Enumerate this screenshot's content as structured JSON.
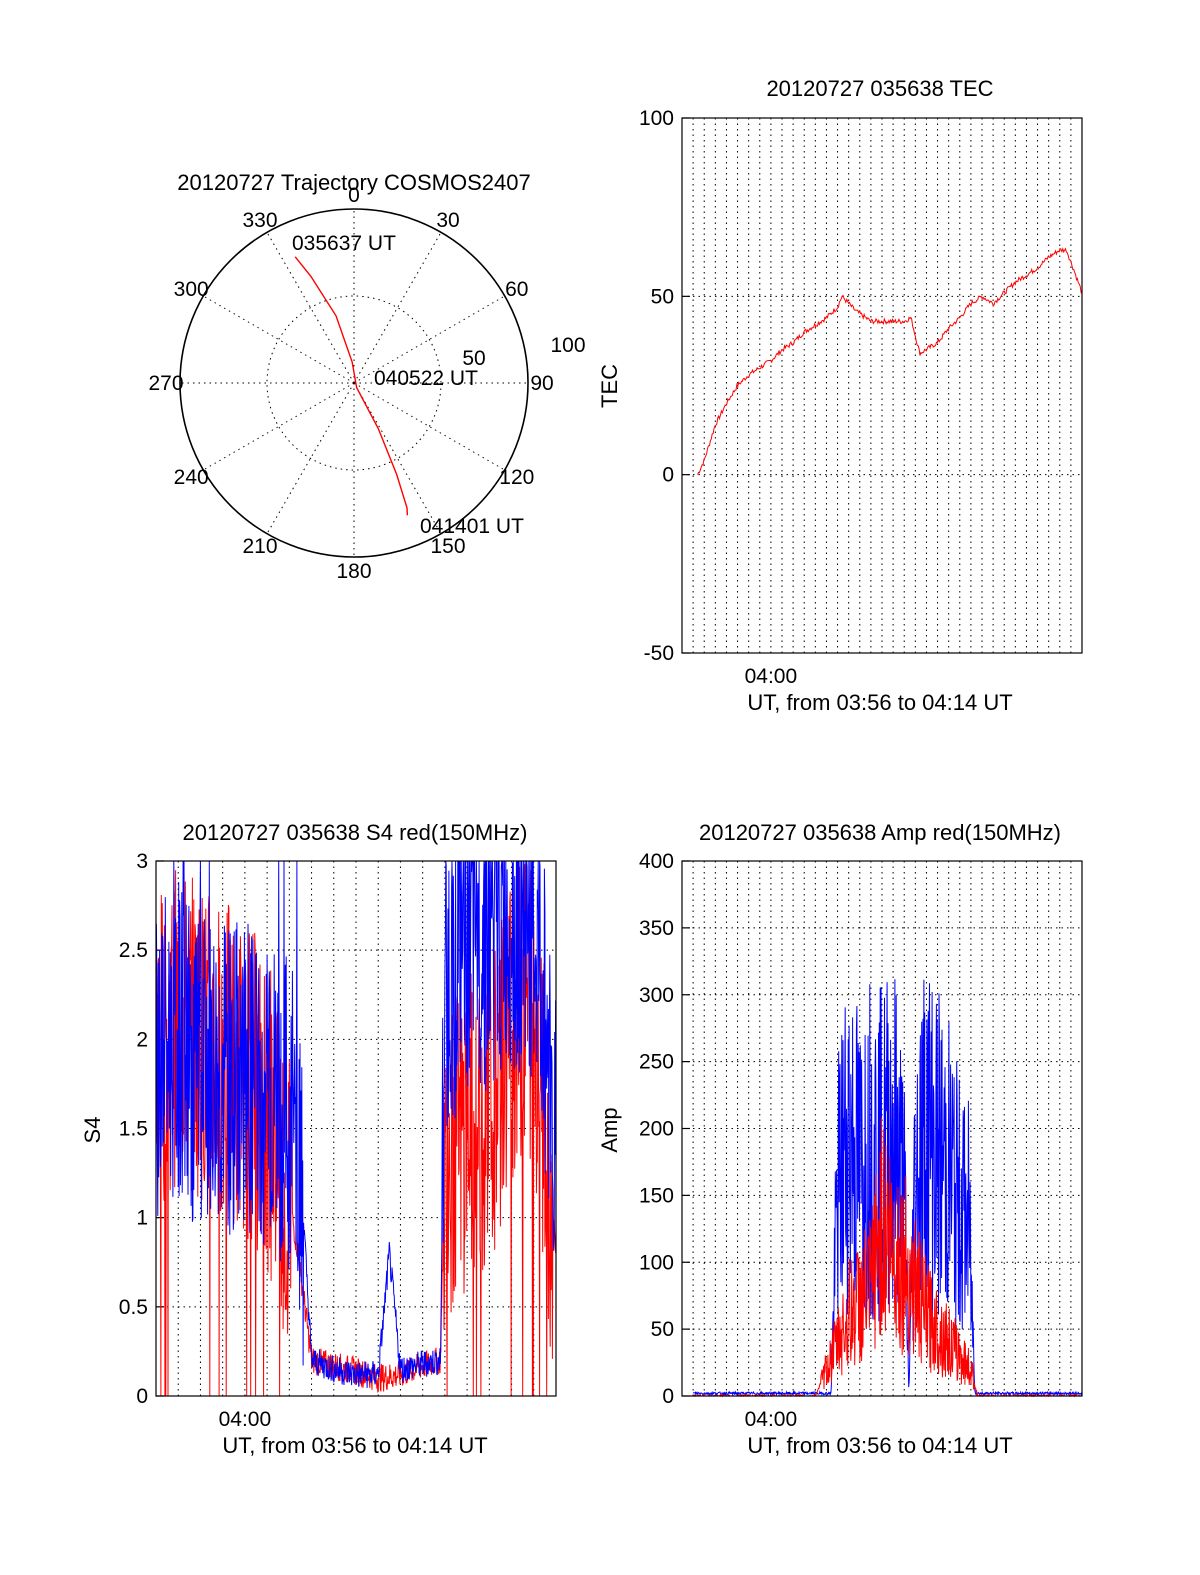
{
  "chart_data": [
    {
      "type": "polar",
      "title": "20120727 Trajectory COSMOS2407",
      "azimuth_labels": [
        "0",
        "30",
        "60",
        "90",
        "120",
        "150",
        "180",
        "210",
        "240",
        "270",
        "300",
        "330"
      ],
      "radial_labels": [
        "50",
        "100"
      ],
      "rlim": [
        0,
        100
      ],
      "grid": true,
      "annotations": [
        "035637 UT",
        "040522 UT",
        "041401 UT"
      ],
      "trajectory": {
        "color": "#ff0000",
        "points": [
          {
            "az": 335,
            "r": 80
          },
          {
            "az": 338,
            "r": 66
          },
          {
            "az": 345,
            "r": 40
          },
          {
            "az": 355,
            "r": 12
          },
          {
            "az": 150,
            "r": 3
          },
          {
            "az": 152,
            "r": 30
          },
          {
            "az": 155,
            "r": 58
          },
          {
            "az": 157,
            "r": 78
          },
          {
            "az": 158,
            "r": 82
          }
        ]
      }
    },
    {
      "type": "line",
      "title": "20120727 035638 TEC",
      "xlabel": "UT, from 03:56 to 04:14 UT",
      "ylabel": "TEC",
      "xlim": [
        0,
        18
      ],
      "ylim": [
        -50,
        100
      ],
      "yticks": [
        "-50",
        "0",
        "50",
        "100"
      ],
      "xtick_label": "04:00",
      "xtick_value": 4,
      "x_grid_step": 0.5,
      "grid": true,
      "series": [
        {
          "color": "#ff0000",
          "x": [
            0.7,
            1.0,
            1.5,
            2.0,
            2.5,
            3.0,
            3.5,
            4.0,
            4.5,
            5.0,
            5.5,
            6.0,
            6.5,
            7.0,
            7.2,
            7.8,
            8.5,
            9.0,
            9.5,
            10.0,
            10.3,
            10.7,
            11.5,
            12.0,
            12.5,
            13.0,
            13.5,
            14.0,
            14.5,
            15.0,
            15.5,
            16.0,
            16.5,
            17.0,
            17.3,
            17.6,
            18.0
          ],
          "values": [
            0,
            4,
            14,
            20,
            25,
            28,
            30,
            32,
            35,
            37,
            40,
            42,
            44,
            47,
            50,
            46,
            43,
            43,
            43,
            43,
            44,
            34,
            37,
            41,
            44,
            48,
            50,
            48,
            51,
            54,
            56,
            58,
            61,
            63,
            63,
            58,
            51
          ]
        }
      ]
    },
    {
      "type": "line",
      "title": "20120727 035638 S4 red(150MHz)",
      "xlabel": "UT, from 03:56 to 04:14 UT",
      "ylabel": "S4",
      "xlim": [
        0,
        18
      ],
      "ylim": [
        0,
        3
      ],
      "yticks": [
        "0",
        "0.5",
        "1",
        "1.5",
        "2",
        "2.5",
        "3"
      ],
      "xtick_label": "04:00",
      "xtick_value": 4,
      "x_grid_step": 1,
      "grid": true,
      "series": [
        {
          "color": "#ff0000",
          "x": [
            0,
            1,
            2,
            3,
            4,
            5,
            6,
            6.4,
            7,
            8,
            9,
            10,
            11,
            12,
            12.8,
            13,
            14,
            15,
            16,
            17,
            18
          ],
          "values": [
            1.9,
            2.1,
            2.0,
            1.9,
            1.8,
            1.6,
            1.1,
            0.8,
            0.2,
            0.17,
            0.14,
            0.1,
            0.12,
            0.17,
            0.2,
            1.3,
            1.5,
            1.6,
            2.1,
            2.2,
            0.8
          ]
        },
        {
          "color": "#0000ff",
          "x": [
            0,
            1,
            2,
            3,
            4,
            5,
            6,
            6.4,
            7,
            8,
            9,
            10,
            10.5,
            11,
            12,
            12.8,
            13,
            14,
            15,
            16,
            17,
            18
          ],
          "values": [
            1.9,
            2.0,
            1.8,
            1.8,
            1.8,
            1.7,
            1.6,
            1.5,
            0.2,
            0.15,
            0.12,
            0.12,
            0.8,
            0.15,
            0.18,
            0.2,
            2.3,
            2.6,
            2.6,
            2.7,
            2.6,
            1.6
          ]
        }
      ]
    },
    {
      "type": "line",
      "title": "20120727 035638 Amp red(150MHz)",
      "xlabel": "UT, from 03:56 to 04:14 UT",
      "ylabel": "Amp",
      "xlim": [
        0,
        18
      ],
      "ylim": [
        0,
        400
      ],
      "yticks": [
        "0",
        "50",
        "100",
        "150",
        "200",
        "250",
        "300",
        "350",
        "400"
      ],
      "xtick_label": "04:00",
      "xtick_value": 4,
      "x_grid_step": 0.5,
      "grid": true,
      "series": [
        {
          "color": "#0000ff",
          "x": [
            0.5,
            2,
            4,
            6,
            6.7,
            7,
            7.5,
            8,
            8.5,
            9,
            9.5,
            10,
            10.2,
            10.5,
            11,
            11.5,
            12,
            12.5,
            12.9,
            13.2,
            15,
            18
          ],
          "values": [
            2,
            2,
            2,
            2,
            2,
            150,
            200,
            170,
            190,
            180,
            200,
            150,
            5,
            170,
            200,
            180,
            170,
            140,
            130,
            2,
            2,
            2
          ]
        },
        {
          "color": "#ff0000",
          "x": [
            0.5,
            6,
            6.5,
            7,
            7.5,
            8,
            8.5,
            9,
            9.5,
            10,
            10.5,
            11,
            11.5,
            12,
            12.5,
            13,
            13.3,
            18
          ],
          "values": [
            0,
            0,
            20,
            40,
            60,
            70,
            80,
            130,
            110,
            100,
            80,
            60,
            50,
            40,
            30,
            20,
            0,
            0
          ]
        }
      ]
    }
  ]
}
